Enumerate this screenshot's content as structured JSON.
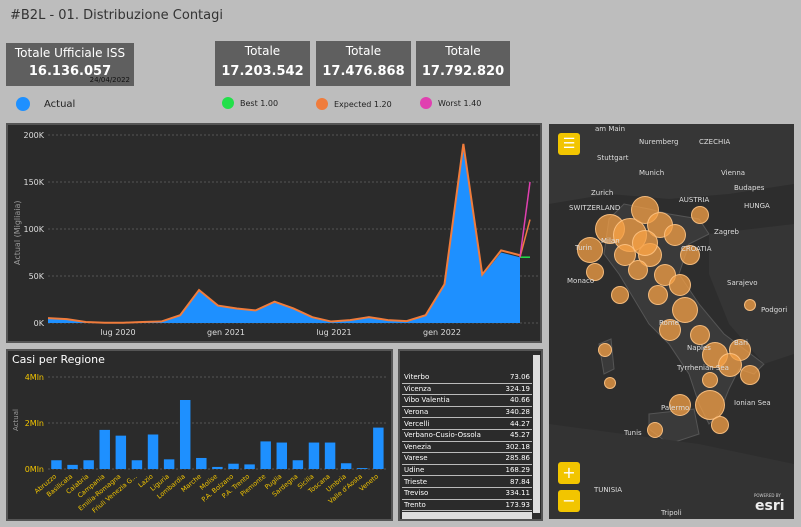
{
  "header": {
    "title": "#B2L - 01. Distribuzione Contagi"
  },
  "kpis": [
    {
      "label": "Totale Ufficiale ISS",
      "value": "16.136.057",
      "date": "24/04/2022"
    },
    {
      "label": "Totale",
      "value": "17.203.542"
    },
    {
      "label": "Totale",
      "value": "17.476.868"
    },
    {
      "label": "Totale",
      "value": "17.792.820"
    }
  ],
  "legend": {
    "actual": {
      "label": "Actual",
      "color": "#1e90ff"
    },
    "best": {
      "label": "Best 1.00",
      "color": "#22e04a"
    },
    "expected": {
      "label": "Expected 1.20",
      "color": "#f07c3c"
    },
    "worst": {
      "label": "Worst 1.40",
      "color": "#e040b0"
    }
  },
  "chart_data": [
    {
      "type": "area",
      "ylabel": "Actual (Migliaia)",
      "ylim": [
        0,
        200000
      ],
      "y_ticks": [
        "200K",
        "150K",
        "100K",
        "50K",
        "0K"
      ],
      "x_ticks": [
        "lug 2020",
        "gen 2021",
        "lug 2021",
        "gen 2022"
      ],
      "x": [
        "2020-03",
        "2020-04",
        "2020-05",
        "2020-06",
        "2020-07",
        "2020-08",
        "2020-09",
        "2020-10",
        "2020-11",
        "2020-12",
        "2021-01",
        "2021-02",
        "2021-03",
        "2021-04",
        "2021-05",
        "2021-06",
        "2021-07",
        "2021-08",
        "2021-09",
        "2021-10",
        "2021-11",
        "2021-12",
        "2022-01",
        "2022-02",
        "2022-03",
        "2022-04"
      ],
      "series": [
        {
          "name": "Actual",
          "values": [
            5000,
            4000,
            1000,
            300,
            300,
            1000,
            1500,
            8000,
            34000,
            18000,
            15000,
            13000,
            22000,
            15000,
            6000,
            1500,
            3000,
            6000,
            3000,
            2000,
            8000,
            40000,
            185000,
            50000,
            75000,
            70000
          ]
        }
      ],
      "projections": {
        "best": 70000,
        "expected": 110000,
        "worst": 150000
      },
      "grid": true
    },
    {
      "type": "bar",
      "title": "Casi per Regione",
      "ylabel": "Actual",
      "ylim": [
        0,
        4000000
      ],
      "y_ticks": [
        "4Mln",
        "2Mln",
        "0Mln"
      ],
      "categories": [
        "Abruzzo",
        "Basilicata",
        "Calabria",
        "Campania",
        "Emilia-Romagna",
        "Friuli Venezia G...",
        "Lazio",
        "Liguria",
        "Lombardia",
        "Marche",
        "Molise",
        "P.A. Bolzano",
        "P.A. Trento",
        "Piemonte",
        "Puglia",
        "Sardegna",
        "Sicilia",
        "Toscana",
        "Umbria",
        "Valle d'Aosta",
        "Veneto"
      ],
      "values": [
        380000,
        180000,
        380000,
        1700000,
        1450000,
        380000,
        1500000,
        420000,
        3000000,
        480000,
        90000,
        230000,
        200000,
        1200000,
        1150000,
        380000,
        1150000,
        1150000,
        250000,
        40000,
        1800000
      ]
    }
  ],
  "table": {
    "rows": [
      {
        "name": "Viterbo",
        "value": "73.06"
      },
      {
        "name": "Vicenza",
        "value": "324.19"
      },
      {
        "name": "Vibo Valentia",
        "value": "40.66"
      },
      {
        "name": "Verona",
        "value": "340.28"
      },
      {
        "name": "Vercelli",
        "value": "44.27"
      },
      {
        "name": "Verbano-Cusio-Ossola",
        "value": "45.27"
      },
      {
        "name": "Venezia",
        "value": "302.18"
      },
      {
        "name": "Varese",
        "value": "285.86"
      },
      {
        "name": "Udine",
        "value": "168.29"
      },
      {
        "name": "Trieste",
        "value": "87.84"
      },
      {
        "name": "Treviso",
        "value": "334.11"
      },
      {
        "name": "Trento",
        "value": "173.93"
      }
    ]
  },
  "map": {
    "labels": [
      "am Main",
      "Nuremberg",
      "CZECHIA",
      "Stuttgart",
      "Munich",
      "Vienna",
      "Zurich",
      "AUSTRIA",
      "Budapes",
      "SWITZERLAND",
      "HUNGA",
      "Milan",
      "Turin",
      "CROATIA",
      "Zagreb",
      "Monaco",
      "Sarajevo",
      "Rome",
      "Podgori",
      "Naples",
      "Bari",
      "Tyrrhenian Sea",
      "Palermo",
      "Ionian Sea",
      "Tunis",
      "TUNISIA",
      "Tripoli"
    ],
    "attribution": "esri",
    "attribution_small": "POWERED BY"
  }
}
